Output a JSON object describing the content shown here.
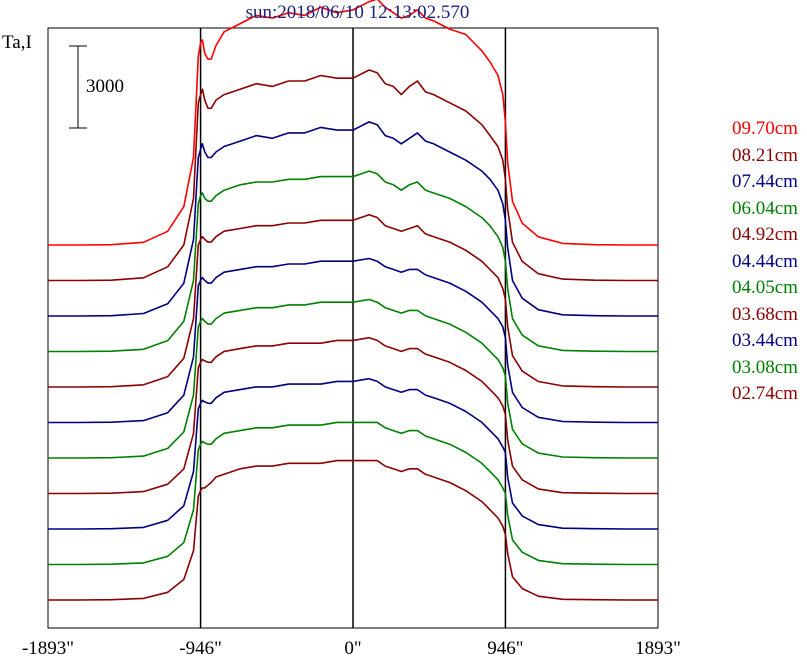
{
  "title": "sun:2018/06/10 12:13:02.570",
  "ylabel": "Ta,I",
  "scale_bar_label": "3000",
  "chart_data": {
    "type": "line",
    "title": "sun:2018/06/10 12:13:02.570",
    "ylabel": "Ta,I",
    "xlabel": "",
    "x_ticks": [
      "-1893\"",
      "-946\"",
      "0\"",
      "946\"",
      "1893\""
    ],
    "x_tick_values": [
      -1893,
      -946,
      0,
      946,
      1893
    ],
    "xlim": [
      -1893,
      1893
    ],
    "limb_markers": [
      -946,
      0,
      946
    ],
    "scale_bar": 3000,
    "x_profile": [
      -1893,
      -1700,
      -1500,
      -1300,
      -1150,
      -1050,
      -990,
      -960,
      -946,
      -935,
      -920,
      -900,
      -880,
      -850,
      -800,
      -700,
      -600,
      -500,
      -400,
      -300,
      -200,
      -100,
      0,
      100,
      150,
      200,
      250,
      300,
      350,
      400,
      450,
      500,
      600,
      700,
      800,
      850,
      900,
      930,
      946,
      960,
      990,
      1050,
      1150,
      1300,
      1500,
      1700,
      1893
    ],
    "series": [
      {
        "name": "09.70cm",
        "color": "#ff0000",
        "profile": [
          0,
          0,
          10,
          100,
          500,
          1400,
          3200,
          6900,
          7400,
          7500,
          7000,
          6800,
          6800,
          7300,
          7800,
          8100,
          8400,
          8300,
          8500,
          8400,
          8700,
          8500,
          8600,
          8900,
          9000,
          8700,
          8500,
          8300,
          8400,
          8600,
          8300,
          8200,
          7900,
          7700,
          7100,
          6700,
          6200,
          5500,
          4500,
          3000,
          1600,
          800,
          300,
          60,
          10,
          0,
          0
        ]
      },
      {
        "name": "08.21cm",
        "color": "#8b0000",
        "profile": [
          0,
          0,
          10,
          100,
          500,
          1300,
          3000,
          6500,
          6800,
          7000,
          6600,
          6300,
          6300,
          6600,
          6800,
          7000,
          7200,
          7100,
          7300,
          7300,
          7500,
          7400,
          7400,
          7700,
          7600,
          7200,
          7100,
          6800,
          7100,
          7300,
          6900,
          6800,
          6500,
          6200,
          5700,
          5300,
          4900,
          4400,
          3700,
          2600,
          1400,
          700,
          250,
          50,
          10,
          0,
          0
        ]
      },
      {
        "name": "07.44cm",
        "color": "#000080",
        "profile": [
          0,
          0,
          10,
          90,
          450,
          1200,
          2800,
          5800,
          6100,
          6300,
          6000,
          5800,
          5800,
          6000,
          6200,
          6400,
          6600,
          6500,
          6700,
          6700,
          6900,
          6800,
          6800,
          7100,
          7000,
          6600,
          6500,
          6300,
          6500,
          6700,
          6400,
          6300,
          6000,
          5700,
          5300,
          5000,
          4600,
          4100,
          3500,
          2500,
          1300,
          650,
          230,
          45,
          10,
          0,
          0
        ]
      },
      {
        "name": "06.04cm",
        "color": "#008000",
        "profile": [
          0,
          0,
          10,
          80,
          400,
          1100,
          2600,
          5400,
          5700,
          5800,
          5600,
          5500,
          5500,
          5700,
          5900,
          6100,
          6200,
          6200,
          6300,
          6300,
          6400,
          6400,
          6400,
          6600,
          6500,
          6200,
          6100,
          5900,
          6100,
          6200,
          5900,
          5800,
          5600,
          5300,
          4900,
          4600,
          4200,
          3800,
          3300,
          2300,
          1200,
          600,
          210,
          40,
          10,
          0,
          0
        ]
      },
      {
        "name": "04.92cm",
        "color": "#8b0000",
        "profile": [
          0,
          0,
          10,
          80,
          380,
          1050,
          2500,
          5200,
          5400,
          5500,
          5400,
          5300,
          5300,
          5500,
          5700,
          5800,
          5900,
          5900,
          6000,
          6000,
          6100,
          6100,
          6100,
          6300,
          6200,
          5900,
          5800,
          5700,
          5800,
          5900,
          5600,
          5500,
          5300,
          5000,
          4600,
          4300,
          4000,
          3600,
          3200,
          2200,
          1150,
          580,
          200,
          40,
          10,
          0,
          0
        ]
      },
      {
        "name": "04.44cm",
        "color": "#000080",
        "profile": [
          0,
          0,
          10,
          70,
          360,
          1000,
          2400,
          5000,
          5200,
          5300,
          5200,
          5100,
          5100,
          5300,
          5500,
          5600,
          5700,
          5700,
          5800,
          5800,
          5900,
          5900,
          5900,
          6000,
          5900,
          5700,
          5600,
          5500,
          5600,
          5600,
          5400,
          5300,
          5100,
          4800,
          4400,
          4100,
          3800,
          3500,
          3100,
          2100,
          1100,
          550,
          190,
          35,
          10,
          0,
          0
        ]
      },
      {
        "name": "04.05cm",
        "color": "#008000",
        "profile": [
          0,
          0,
          10,
          70,
          350,
          950,
          2300,
          4800,
          5000,
          5100,
          5000,
          4900,
          4900,
          5100,
          5300,
          5400,
          5500,
          5500,
          5600,
          5600,
          5700,
          5700,
          5700,
          5800,
          5700,
          5500,
          5400,
          5300,
          5400,
          5400,
          5200,
          5100,
          4900,
          4600,
          4200,
          3900,
          3600,
          3300,
          3000,
          2000,
          1050,
          520,
          180,
          35,
          10,
          0,
          0
        ]
      },
      {
        "name": "03.68cm",
        "color": "#8b0000",
        "profile": [
          0,
          0,
          10,
          70,
          340,
          900,
          2200,
          4600,
          4800,
          4900,
          4850,
          4800,
          4800,
          5000,
          5200,
          5300,
          5400,
          5400,
          5500,
          5500,
          5500,
          5600,
          5600,
          5700,
          5600,
          5400,
          5300,
          5200,
          5300,
          5300,
          5100,
          5000,
          4800,
          4500,
          4100,
          3800,
          3500,
          3200,
          2900,
          1950,
          1000,
          500,
          170,
          30,
          10,
          0,
          0
        ]
      },
      {
        "name": "03.44cm",
        "color": "#000080",
        "profile": [
          0,
          0,
          10,
          60,
          320,
          850,
          2100,
          4400,
          4600,
          4700,
          4650,
          4600,
          4600,
          4800,
          5000,
          5100,
          5200,
          5200,
          5300,
          5300,
          5300,
          5400,
          5400,
          5500,
          5400,
          5200,
          5100,
          5000,
          5100,
          5100,
          4900,
          4800,
          4600,
          4300,
          3900,
          3600,
          3300,
          3000,
          2800,
          1900,
          950,
          480,
          160,
          30,
          10,
          0,
          0
        ]
      },
      {
        "name": "03.08cm",
        "color": "#008000",
        "profile": [
          0,
          0,
          10,
          60,
          300,
          800,
          2000,
          4200,
          4400,
          4500,
          4450,
          4400,
          4400,
          4600,
          4800,
          4900,
          5000,
          5000,
          5100,
          5100,
          5100,
          5200,
          5200,
          5200,
          5200,
          5000,
          4900,
          4800,
          4900,
          4900,
          4700,
          4600,
          4400,
          4100,
          3700,
          3400,
          3100,
          2800,
          2600,
          1800,
          900,
          450,
          150,
          30,
          10,
          0,
          0
        ]
      },
      {
        "name": "02.74cm",
        "color": "#8b0000",
        "profile": [
          0,
          0,
          10,
          60,
          280,
          750,
          1800,
          3800,
          4000,
          4100,
          4100,
          4200,
          4300,
          4500,
          4600,
          4800,
          4900,
          4900,
          5000,
          5000,
          5000,
          5100,
          5100,
          5100,
          5100,
          4900,
          4800,
          4700,
          4800,
          4800,
          4600,
          4500,
          4300,
          4000,
          3600,
          3300,
          3000,
          2700,
          2400,
          1700,
          850,
          420,
          140,
          25,
          10,
          0,
          0
        ]
      }
    ]
  }
}
